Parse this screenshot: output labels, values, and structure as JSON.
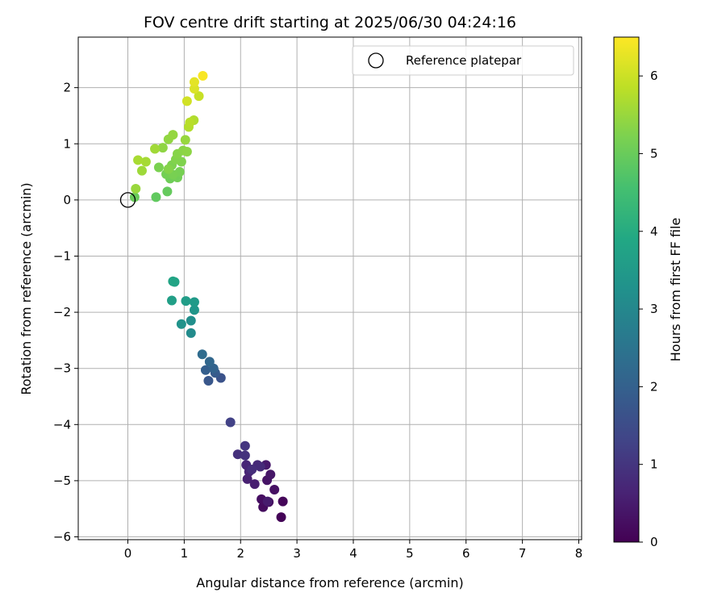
{
  "chart_data": {
    "type": "scatter",
    "title": "FOV centre drift starting at 2025/06/30 04:24:16",
    "xlabel": "Angular distance from reference (arcmin)",
    "ylabel": "Rotation from reference (arcmin)",
    "xlim": [
      -0.88,
      8.05
    ],
    "ylim": [
      -6.05,
      2.9
    ],
    "xticks": [
      0,
      1,
      2,
      3,
      4,
      5,
      6,
      7,
      8
    ],
    "yticks": [
      -6,
      -5,
      -4,
      -3,
      -2,
      -1,
      0,
      1,
      2
    ],
    "xtick_labels": [
      "0",
      "1",
      "2",
      "3",
      "4",
      "5",
      "6",
      "7",
      "8"
    ],
    "ytick_labels": [
      "−6",
      "−5",
      "−4",
      "−3",
      "−2",
      "−1",
      "0",
      "1",
      "2"
    ],
    "grid": true,
    "colormap": "viridis",
    "colorbar": {
      "label": "Hours from first FF file",
      "range": [
        0,
        6.5
      ],
      "ticks": [
        0,
        1,
        2,
        3,
        4,
        5,
        6
      ],
      "tick_labels": [
        "0",
        "1",
        "2",
        "3",
        "4",
        "5",
        "6"
      ]
    },
    "legend": {
      "position": "top-right",
      "entries": [
        {
          "label": "Reference platepar",
          "marker": "hollow-circle"
        }
      ]
    },
    "reference_point": {
      "x": 0,
      "y": 0
    },
    "points": [
      {
        "x": 2.72,
        "y": -5.65,
        "t": 0.05
      },
      {
        "x": 2.75,
        "y": -5.37,
        "t": 0.1
      },
      {
        "x": 2.5,
        "y": -5.38,
        "t": 0.15
      },
      {
        "x": 2.4,
        "y": -5.47,
        "t": 0.2
      },
      {
        "x": 2.37,
        "y": -5.33,
        "t": 0.25
      },
      {
        "x": 2.6,
        "y": -5.16,
        "t": 0.3
      },
      {
        "x": 2.47,
        "y": -4.99,
        "t": 0.35
      },
      {
        "x": 2.53,
        "y": -4.89,
        "t": 0.4
      },
      {
        "x": 2.45,
        "y": -4.72,
        "t": 0.45
      },
      {
        "x": 2.48,
        "y": -5.37,
        "t": 0.5
      },
      {
        "x": 2.25,
        "y": -5.06,
        "t": 0.55
      },
      {
        "x": 2.12,
        "y": -4.97,
        "t": 0.6
      },
      {
        "x": 2.15,
        "y": -4.84,
        "t": 0.65
      },
      {
        "x": 2.1,
        "y": -4.72,
        "t": 0.7
      },
      {
        "x": 2.3,
        "y": -4.72,
        "t": 0.75
      },
      {
        "x": 2.35,
        "y": -4.75,
        "t": 0.8
      },
      {
        "x": 2.2,
        "y": -4.8,
        "t": 0.85
      },
      {
        "x": 1.95,
        "y": -4.53,
        "t": 0.9
      },
      {
        "x": 2.08,
        "y": -4.55,
        "t": 0.95
      },
      {
        "x": 2.08,
        "y": -4.38,
        "t": 1.0
      },
      {
        "x": 1.82,
        "y": -3.96,
        "t": 1.25
      },
      {
        "x": 1.65,
        "y": -3.17,
        "t": 1.65
      },
      {
        "x": 1.43,
        "y": -3.22,
        "t": 1.75
      },
      {
        "x": 1.55,
        "y": -3.08,
        "t": 1.85
      },
      {
        "x": 1.38,
        "y": -3.03,
        "t": 1.95
      },
      {
        "x": 1.52,
        "y": -3.0,
        "t": 2.05
      },
      {
        "x": 1.45,
        "y": -2.88,
        "t": 2.15
      },
      {
        "x": 1.32,
        "y": -2.75,
        "t": 2.3
      },
      {
        "x": 1.12,
        "y": -2.37,
        "t": 3.1
      },
      {
        "x": 1.12,
        "y": -2.15,
        "t": 3.2
      },
      {
        "x": 0.95,
        "y": -2.21,
        "t": 3.3
      },
      {
        "x": 1.18,
        "y": -1.96,
        "t": 3.4
      },
      {
        "x": 1.18,
        "y": -1.82,
        "t": 3.5
      },
      {
        "x": 1.03,
        "y": -1.8,
        "t": 3.6
      },
      {
        "x": 0.78,
        "y": -1.79,
        "t": 3.65
      },
      {
        "x": 0.83,
        "y": -1.46,
        "t": 3.75
      },
      {
        "x": 0.8,
        "y": -1.45,
        "t": 3.8
      },
      {
        "x": 0.5,
        "y": 0.05,
        "t": 4.9
      },
      {
        "x": 0.7,
        "y": 0.15,
        "t": 4.95
      },
      {
        "x": 0.12,
        "y": 0.05,
        "t": 5.0
      },
      {
        "x": 0.75,
        "y": 0.38,
        "t": 5.05
      },
      {
        "x": 0.88,
        "y": 0.4,
        "t": 5.1
      },
      {
        "x": 0.68,
        "y": 0.46,
        "t": 5.12
      },
      {
        "x": 0.92,
        "y": 0.5,
        "t": 5.15
      },
      {
        "x": 0.8,
        "y": 0.45,
        "t": 5.18
      },
      {
        "x": 0.55,
        "y": 0.58,
        "t": 5.2
      },
      {
        "x": 0.78,
        "y": 0.62,
        "t": 5.22
      },
      {
        "x": 0.95,
        "y": 0.68,
        "t": 5.25
      },
      {
        "x": 0.85,
        "y": 0.72,
        "t": 5.28
      },
      {
        "x": 0.72,
        "y": 0.55,
        "t": 5.3
      },
      {
        "x": 0.88,
        "y": 0.82,
        "t": 5.32
      },
      {
        "x": 0.98,
        "y": 0.88,
        "t": 5.35
      },
      {
        "x": 1.05,
        "y": 0.86,
        "t": 5.38
      },
      {
        "x": 0.62,
        "y": 0.93,
        "t": 5.4
      },
      {
        "x": 0.72,
        "y": 1.08,
        "t": 5.42
      },
      {
        "x": 0.8,
        "y": 1.16,
        "t": 5.45
      },
      {
        "x": 1.02,
        "y": 1.07,
        "t": 5.48
      },
      {
        "x": 0.14,
        "y": 0.2,
        "t": 5.5
      },
      {
        "x": 0.25,
        "y": 0.52,
        "t": 5.55
      },
      {
        "x": 0.48,
        "y": 0.91,
        "t": 5.58
      },
      {
        "x": 0.32,
        "y": 0.68,
        "t": 5.62
      },
      {
        "x": 0.18,
        "y": 0.71,
        "t": 5.65
      },
      {
        "x": 1.17,
        "y": 1.42,
        "t": 5.72
      },
      {
        "x": 1.08,
        "y": 1.3,
        "t": 5.75
      },
      {
        "x": 1.1,
        "y": 1.38,
        "t": 5.8
      },
      {
        "x": 1.26,
        "y": 1.85,
        "t": 5.95
      },
      {
        "x": 1.05,
        "y": 1.76,
        "t": 6.05
      },
      {
        "x": 1.18,
        "y": 1.98,
        "t": 6.15
      },
      {
        "x": 1.18,
        "y": 2.1,
        "t": 6.25
      },
      {
        "x": 1.33,
        "y": 2.21,
        "t": 6.45
      }
    ]
  }
}
